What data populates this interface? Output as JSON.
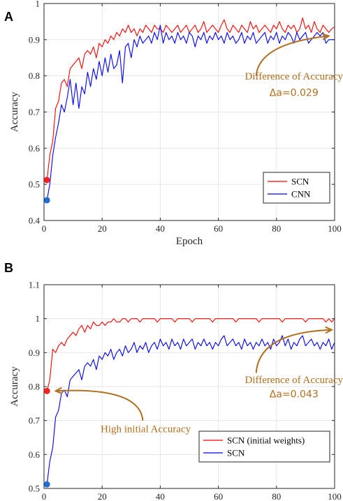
{
  "chart_data": [
    {
      "type": "line",
      "panel_label": "A",
      "xlabel": "Epoch",
      "ylabel": "Accuracy",
      "xlim": [
        0,
        100
      ],
      "ylim": [
        0.4,
        1.0
      ],
      "xticks": [
        0,
        20,
        40,
        60,
        80,
        100
      ],
      "yticks": [
        0.4,
        0.5,
        0.6,
        0.7,
        0.8,
        0.9,
        1.0
      ],
      "xtick_labels": [
        "0",
        "20",
        "40",
        "60",
        "80",
        "100"
      ],
      "ytick_labels": [
        "0.4",
        "0.5",
        "0.6",
        "0.7",
        "0.8",
        "0.9",
        "1"
      ],
      "grid": true,
      "legend_position": "bottom-right",
      "series": [
        {
          "name": "SCN",
          "color": "#ff0000",
          "x": [
            1,
            2,
            3,
            4,
            5,
            6,
            7,
            8,
            9,
            10,
            11,
            12,
            13,
            14,
            15,
            16,
            17,
            18,
            19,
            20,
            21,
            22,
            23,
            24,
            25,
            26,
            27,
            28,
            29,
            30,
            31,
            32,
            33,
            34,
            35,
            36,
            37,
            38,
            39,
            40,
            41,
            42,
            43,
            44,
            45,
            46,
            47,
            48,
            49,
            50,
            51,
            52,
            53,
            54,
            55,
            56,
            57,
            58,
            59,
            60,
            61,
            62,
            63,
            64,
            65,
            66,
            67,
            68,
            69,
            70,
            71,
            72,
            73,
            74,
            75,
            76,
            77,
            78,
            79,
            80,
            81,
            82,
            83,
            84,
            85,
            86,
            87,
            88,
            89,
            90,
            91,
            92,
            93,
            94,
            95,
            96,
            97,
            98,
            99,
            100
          ],
          "y": [
            0.512,
            0.58,
            0.62,
            0.71,
            0.73,
            0.78,
            0.79,
            0.77,
            0.82,
            0.83,
            0.84,
            0.85,
            0.82,
            0.86,
            0.87,
            0.86,
            0.88,
            0.85,
            0.89,
            0.88,
            0.9,
            0.89,
            0.91,
            0.9,
            0.92,
            0.91,
            0.93,
            0.92,
            0.94,
            0.92,
            0.93,
            0.91,
            0.93,
            0.92,
            0.94,
            0.93,
            0.92,
            0.94,
            0.93,
            0.93,
            0.92,
            0.94,
            0.93,
            0.92,
            0.93,
            0.94,
            0.92,
            0.93,
            0.94,
            0.92,
            0.93,
            0.94,
            0.92,
            0.93,
            0.95,
            0.92,
            0.93,
            0.94,
            0.93,
            0.92,
            0.94,
            0.955,
            0.93,
            0.92,
            0.94,
            0.93,
            0.92,
            0.94,
            0.93,
            0.92,
            0.95,
            0.93,
            0.94,
            0.92,
            0.93,
            0.94,
            0.93,
            0.92,
            0.94,
            0.93,
            0.95,
            0.93,
            0.92,
            0.94,
            0.93,
            0.94,
            0.92,
            0.93,
            0.96,
            0.93,
            0.94,
            0.92,
            0.95,
            0.93,
            0.92,
            0.94,
            0.93,
            0.92,
            0.93,
            0.935
          ]
        },
        {
          "name": "CNN",
          "color": "#0000ff",
          "x": [
            1,
            2,
            3,
            4,
            5,
            6,
            7,
            8,
            9,
            10,
            11,
            12,
            13,
            14,
            15,
            16,
            17,
            18,
            19,
            20,
            21,
            22,
            23,
            24,
            25,
            26,
            27,
            28,
            29,
            30,
            31,
            32,
            33,
            34,
            35,
            36,
            37,
            38,
            39,
            40,
            41,
            42,
            43,
            44,
            45,
            46,
            47,
            48,
            49,
            50,
            51,
            52,
            53,
            54,
            55,
            56,
            57,
            58,
            59,
            60,
            61,
            62,
            63,
            64,
            65,
            66,
            67,
            68,
            69,
            70,
            71,
            72,
            73,
            74,
            75,
            76,
            77,
            78,
            79,
            80,
            81,
            82,
            83,
            84,
            85,
            86,
            87,
            88,
            89,
            90,
            91,
            92,
            93,
            94,
            95,
            96,
            97,
            98,
            99,
            100
          ],
          "y": [
            0.456,
            0.5,
            0.58,
            0.63,
            0.67,
            0.72,
            0.7,
            0.74,
            0.79,
            0.72,
            0.78,
            0.71,
            0.77,
            0.75,
            0.81,
            0.77,
            0.82,
            0.79,
            0.84,
            0.8,
            0.85,
            0.81,
            0.86,
            0.82,
            0.83,
            0.87,
            0.78,
            0.88,
            0.89,
            0.85,
            0.9,
            0.88,
            0.91,
            0.89,
            0.9,
            0.91,
            0.89,
            0.92,
            0.9,
            0.94,
            0.89,
            0.92,
            0.9,
            0.91,
            0.89,
            0.92,
            0.9,
            0.91,
            0.89,
            0.92,
            0.91,
            0.88,
            0.91,
            0.9,
            0.92,
            0.89,
            0.91,
            0.9,
            0.92,
            0.9,
            0.91,
            0.89,
            0.92,
            0.9,
            0.91,
            0.89,
            0.9,
            0.92,
            0.89,
            0.91,
            0.9,
            0.92,
            0.89,
            0.9,
            0.91,
            0.92,
            0.89,
            0.91,
            0.9,
            0.92,
            0.89,
            0.91,
            0.9,
            0.92,
            0.91,
            0.89,
            0.92,
            0.9,
            0.91,
            0.92,
            0.89,
            0.9,
            0.91,
            0.92,
            0.91,
            0.92,
            0.89,
            0.9,
            0.9,
            0.9
          ]
        }
      ],
      "markers": [
        {
          "x": 1,
          "y": 0.512,
          "color": "#ff1f1f"
        },
        {
          "x": 1,
          "y": 0.456,
          "color": "#1f6fd0"
        }
      ],
      "annotations": [
        {
          "text": "Difference of Accuracy",
          "x": 86,
          "y": 0.79
        },
        {
          "text": "Δa=0.029",
          "x": 86,
          "y": 0.744
        }
      ],
      "arrows": [
        {
          "from": [
            73,
            0.8
          ],
          "ctrl": [
            74,
            0.89
          ],
          "to": [
            98,
            0.91
          ]
        }
      ]
    },
    {
      "type": "line",
      "panel_label": "B",
      "xlabel": "Epoch",
      "ylabel": "Accuracy",
      "xlim": [
        0,
        100
      ],
      "ylim": [
        0.5,
        1.1
      ],
      "xticks": [
        0,
        20,
        40,
        60,
        80,
        100
      ],
      "yticks": [
        0.5,
        0.6,
        0.7,
        0.8,
        0.9,
        1.0,
        1.1
      ],
      "xtick_labels": [
        "0",
        "20",
        "40",
        "60",
        "80",
        "100"
      ],
      "ytick_labels": [
        "0.5",
        "0.6",
        "0.7",
        "0.8",
        "0.9",
        "1",
        "1.1"
      ],
      "grid": true,
      "legend_position": "bottom-right",
      "series": [
        {
          "name": "SCN (initial weights)",
          "color": "#ff0000",
          "x": [
            1,
            2,
            3,
            4,
            5,
            6,
            7,
            8,
            9,
            10,
            11,
            12,
            13,
            14,
            15,
            16,
            17,
            18,
            19,
            20,
            21,
            22,
            23,
            24,
            25,
            26,
            27,
            28,
            29,
            30,
            31,
            32,
            33,
            34,
            35,
            36,
            37,
            38,
            39,
            40,
            41,
            42,
            43,
            44,
            45,
            46,
            47,
            48,
            49,
            50,
            51,
            52,
            53,
            54,
            55,
            56,
            57,
            58,
            59,
            60,
            61,
            62,
            63,
            64,
            65,
            66,
            67,
            68,
            69,
            70,
            71,
            72,
            73,
            74,
            75,
            76,
            77,
            78,
            79,
            80,
            81,
            82,
            83,
            84,
            85,
            86,
            87,
            88,
            89,
            90,
            91,
            92,
            93,
            94,
            95,
            96,
            97,
            98,
            99,
            100
          ],
          "y": [
            0.787,
            0.82,
            0.91,
            0.9,
            0.92,
            0.93,
            0.92,
            0.94,
            0.95,
            0.96,
            0.95,
            0.97,
            0.98,
            0.96,
            0.98,
            0.97,
            0.99,
            0.98,
            0.98,
            0.99,
            0.98,
            0.99,
            0.99,
            1.0,
            0.99,
            0.99,
            1.0,
            1.0,
            0.99,
            1.0,
            1.0,
            1.0,
            0.99,
            1.0,
            1.0,
            1.0,
            1.0,
            1.0,
            0.99,
            1.0,
            1.0,
            1.0,
            1.0,
            1.0,
            0.99,
            1.0,
            1.0,
            1.0,
            1.0,
            1.0,
            0.99,
            1.0,
            1.0,
            1.0,
            1.0,
            1.0,
            1.0,
            0.99,
            1.0,
            1.0,
            1.0,
            1.0,
            1.0,
            1.0,
            1.0,
            0.99,
            1.0,
            1.0,
            1.0,
            1.0,
            1.0,
            1.0,
            1.0,
            0.99,
            1.0,
            1.0,
            1.0,
            1.0,
            1.0,
            1.0,
            1.0,
            0.99,
            1.0,
            1.0,
            1.0,
            1.0,
            1.0,
            1.0,
            1.0,
            0.99,
            1.0,
            1.0,
            1.0,
            1.0,
            1.0,
            1.0,
            0.99,
            1.0,
            0.99,
            1.0
          ]
        },
        {
          "name": "SCN",
          "color": "#0000ff",
          "x": [
            1,
            2,
            3,
            4,
            5,
            6,
            7,
            8,
            9,
            10,
            11,
            12,
            13,
            14,
            15,
            16,
            17,
            18,
            19,
            20,
            21,
            22,
            23,
            24,
            25,
            26,
            27,
            28,
            29,
            30,
            31,
            32,
            33,
            34,
            35,
            36,
            37,
            38,
            39,
            40,
            41,
            42,
            43,
            44,
            45,
            46,
            47,
            48,
            49,
            50,
            51,
            52,
            53,
            54,
            55,
            56,
            57,
            58,
            59,
            60,
            61,
            62,
            63,
            64,
            65,
            66,
            67,
            68,
            69,
            70,
            71,
            72,
            73,
            74,
            75,
            76,
            77,
            78,
            79,
            80,
            81,
            82,
            83,
            84,
            85,
            86,
            87,
            88,
            89,
            90,
            91,
            92,
            93,
            94,
            95,
            96,
            97,
            98,
            99,
            100
          ],
          "y": [
            0.512,
            0.58,
            0.62,
            0.71,
            0.73,
            0.78,
            0.79,
            0.77,
            0.82,
            0.83,
            0.84,
            0.85,
            0.82,
            0.86,
            0.87,
            0.86,
            0.88,
            0.85,
            0.89,
            0.88,
            0.9,
            0.89,
            0.91,
            0.88,
            0.9,
            0.91,
            0.89,
            0.92,
            0.9,
            0.91,
            0.93,
            0.9,
            0.92,
            0.91,
            0.93,
            0.9,
            0.92,
            0.93,
            0.91,
            0.94,
            0.92,
            0.93,
            0.91,
            0.94,
            0.92,
            0.93,
            0.91,
            0.94,
            0.92,
            0.93,
            0.94,
            0.91,
            0.93,
            0.92,
            0.94,
            0.92,
            0.93,
            0.91,
            0.93,
            0.92,
            0.94,
            0.95,
            0.92,
            0.93,
            0.94,
            0.92,
            0.93,
            0.91,
            0.94,
            0.92,
            0.93,
            0.91,
            0.93,
            0.92,
            0.94,
            0.92,
            0.93,
            0.91,
            0.94,
            0.92,
            0.93,
            0.95,
            0.92,
            0.94,
            0.91,
            0.93,
            0.92,
            0.94,
            0.95,
            0.92,
            0.93,
            0.94,
            0.92,
            0.93,
            0.91,
            0.93,
            0.92,
            0.94,
            0.91,
            0.93
          ]
        }
      ],
      "markers": [
        {
          "x": 1,
          "y": 0.787,
          "color": "#ff1f1f"
        },
        {
          "x": 1,
          "y": 0.512,
          "color": "#1f6fd0"
        }
      ],
      "annotations": [
        {
          "text": "Difference of Accuracy",
          "x": 86,
          "y": 0.81
        },
        {
          "text": "Δa=0.043",
          "x": 86,
          "y": 0.768
        },
        {
          "text": "High initial Accuracy",
          "x": 35,
          "y": 0.665
        }
      ],
      "arrows": [
        {
          "from": [
            73,
            0.84
          ],
          "ctrl": [
            74,
            0.96
          ],
          "to": [
            99,
            0.967
          ]
        },
        {
          "from": [
            34,
            0.7
          ],
          "ctrl": [
            33,
            0.8
          ],
          "to": [
            4,
            0.787
          ]
        }
      ]
    }
  ]
}
